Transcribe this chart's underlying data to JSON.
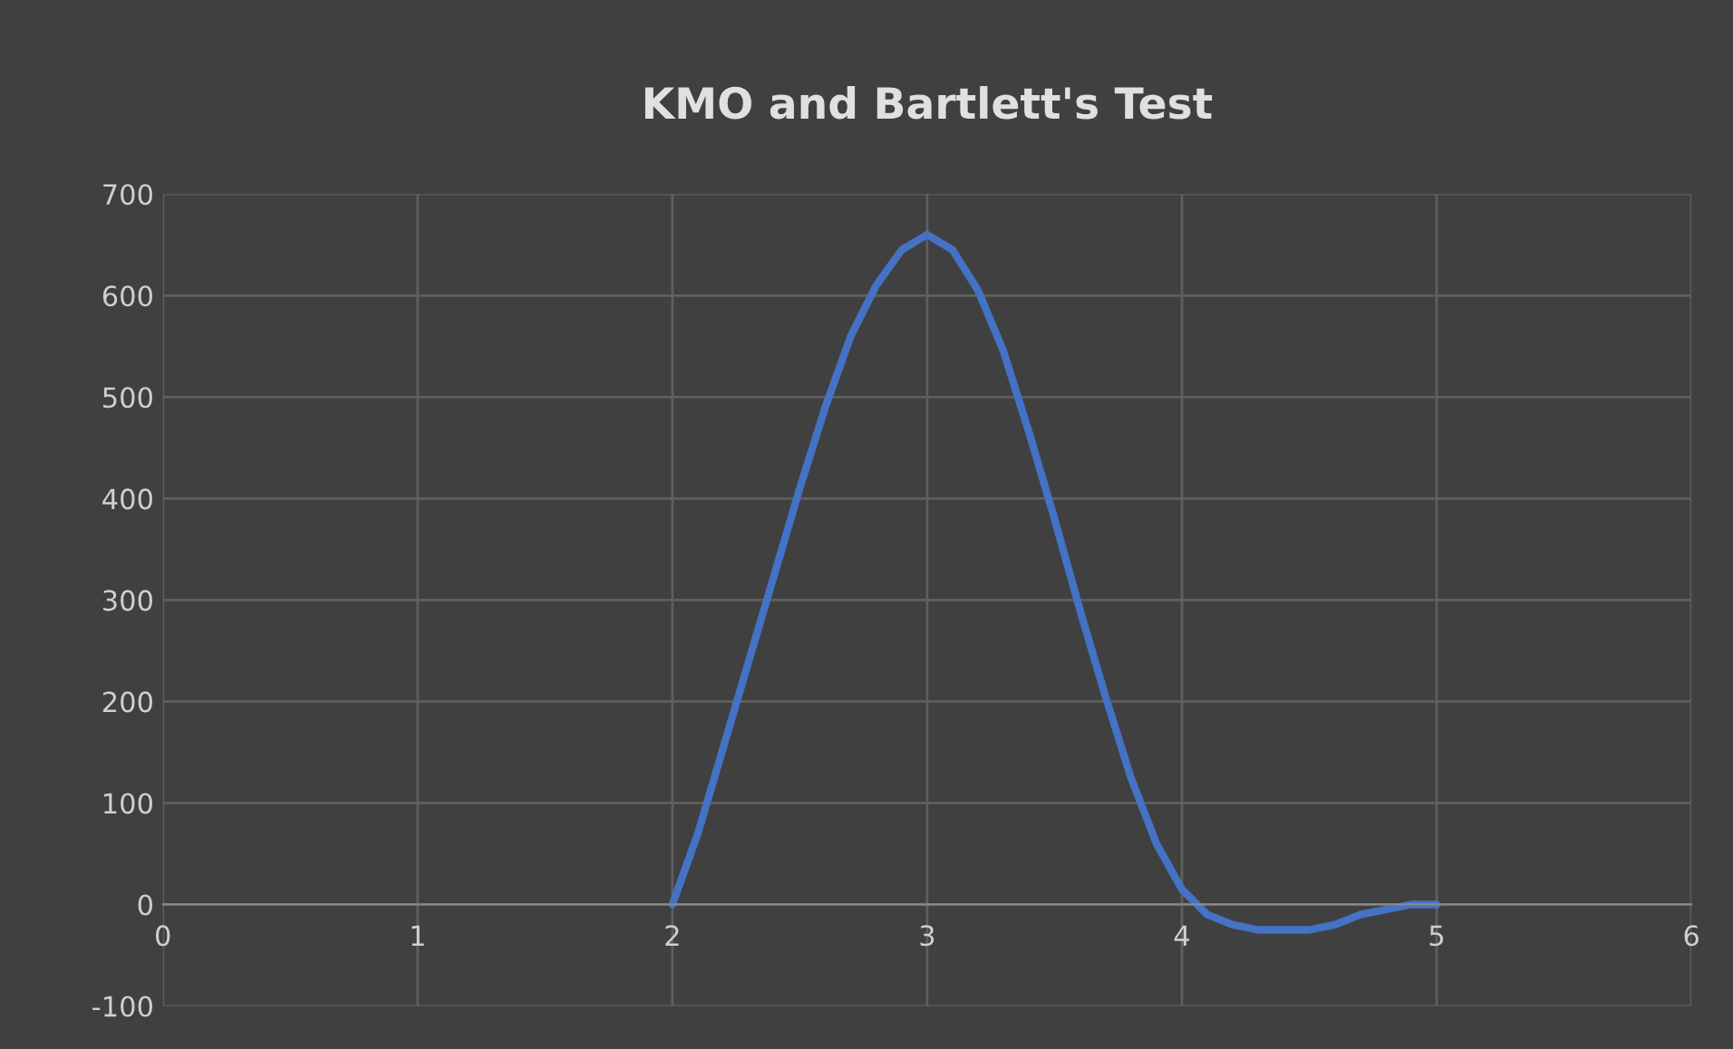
{
  "chart_data": {
    "type": "line",
    "title": "KMO and Bartlett's Test",
    "x": [
      2,
      2.1,
      2.2,
      2.3,
      2.4,
      2.5,
      2.6,
      2.7,
      2.8,
      2.9,
      3,
      3.1,
      3.2,
      3.3,
      3.4,
      3.5,
      3.6,
      3.7,
      3.8,
      3.9,
      4,
      4.1,
      4.2,
      4.3,
      4.4,
      4.5,
      4.6,
      4.7,
      4.8,
      4.9,
      5
    ],
    "values": [
      0,
      70,
      155,
      240,
      325,
      410,
      490,
      560,
      610,
      645,
      660,
      645,
      605,
      545,
      465,
      380,
      290,
      205,
      125,
      60,
      15,
      -10,
      -20,
      -25,
      -25,
      -25,
      -20,
      -10,
      -5,
      0,
      0
    ],
    "color": "#4472c4",
    "xlim": [
      0,
      6
    ],
    "xticks": [
      0,
      1,
      2,
      3,
      4,
      5,
      6
    ],
    "ylim": [
      -100,
      700
    ],
    "yticks": [
      -100,
      0,
      100,
      200,
      300,
      400,
      500,
      600,
      700
    ],
    "grid": true,
    "marker": "none",
    "line_style": "solid"
  }
}
